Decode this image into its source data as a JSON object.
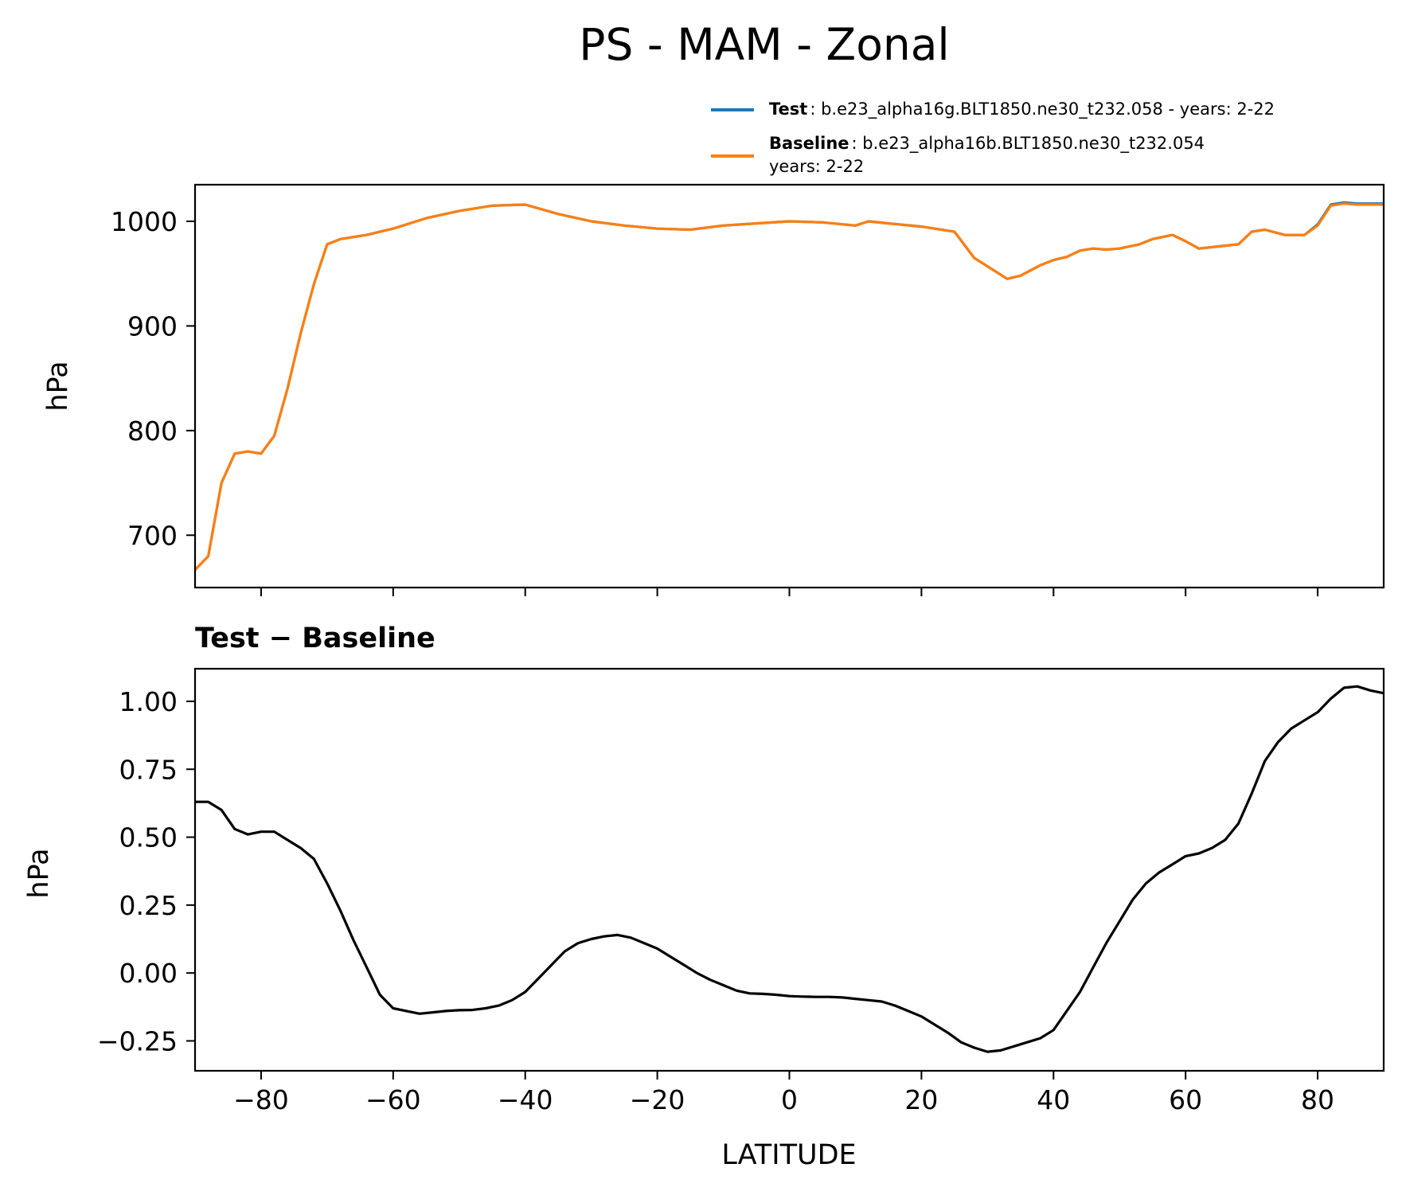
{
  "figure": {
    "title": "PS - MAM - Zonal"
  },
  "chart_data": [
    {
      "type": "line",
      "ylabel": "hPa",
      "xlim": [
        -90,
        90
      ],
      "ylim": [
        650,
        1035
      ],
      "yticks": [
        700,
        800,
        900,
        1000
      ],
      "grid": false,
      "legend": {
        "placement": "above-top-right",
        "entries": [
          {
            "name": "Test",
            "text": ": b.e23_alpha16g.BLT1850.ne30_t232.058 - years: 2-22",
            "color": "#1f77b4"
          },
          {
            "name": "Baseline",
            "text": ": b.e23_alpha16b.BLT1850.ne30_t232.054",
            "text2": "years: 2-22",
            "color": "#ff7f0e"
          }
        ]
      },
      "x": [
        -90,
        -88,
        -86,
        -84,
        -82,
        -80,
        -78,
        -76,
        -74,
        -72,
        -70,
        -68,
        -66,
        -64,
        -62,
        -60,
        -55,
        -50,
        -45,
        -40,
        -35,
        -30,
        -25,
        -20,
        -15,
        -10,
        -5,
        0,
        5,
        10,
        12,
        15,
        20,
        25,
        28,
        30,
        33,
        35,
        38,
        40,
        42,
        44,
        46,
        48,
        50,
        53,
        55,
        58,
        60,
        62,
        65,
        68,
        70,
        72,
        75,
        78,
        80,
        82,
        84,
        86,
        88,
        90
      ],
      "series": [
        {
          "name": "Test",
          "color": "#1f77b4",
          "values": [
            667,
            680,
            750,
            778,
            780,
            778,
            795,
            840,
            893,
            940,
            978,
            983,
            985,
            987,
            990,
            993,
            1003,
            1010,
            1015,
            1016,
            1007,
            1000,
            996,
            993,
            992,
            996,
            998,
            1000,
            999,
            996,
            1000,
            998,
            995,
            990,
            965,
            957,
            945,
            948,
            958,
            963,
            966,
            972,
            974,
            973,
            974,
            978,
            983,
            987,
            981,
            974,
            976,
            978,
            990,
            992,
            987,
            987,
            997,
            1016,
            1018,
            1017,
            1017,
            1017
          ]
        },
        {
          "name": "Baseline",
          "color": "#ff7f0e",
          "values": [
            667,
            680,
            750,
            778,
            780,
            778,
            795,
            840,
            893,
            940,
            978,
            983,
            985,
            987,
            990,
            993,
            1003,
            1010,
            1015,
            1016,
            1007,
            1000,
            996,
            993,
            992,
            996,
            998,
            1000,
            999,
            996,
            1000,
            998,
            995,
            990,
            965,
            957,
            945,
            948,
            958,
            963,
            966,
            972,
            974,
            973,
            974,
            978,
            983,
            987,
            981,
            974,
            976,
            978,
            990,
            992,
            987,
            987,
            996,
            1015,
            1017,
            1016,
            1016,
            1016
          ]
        }
      ]
    },
    {
      "type": "line",
      "title": "Test − Baseline",
      "xlabel": "LATITUDE",
      "ylabel": "hPa",
      "xlim": [
        -90,
        90
      ],
      "ylim": [
        -0.36,
        1.12
      ],
      "xticks": [
        -80,
        -60,
        -40,
        -20,
        0,
        20,
        40,
        60,
        80
      ],
      "yticks": [
        -0.25,
        0.0,
        0.25,
        0.5,
        0.75,
        1.0
      ],
      "grid": false,
      "series": [
        {
          "name": "Test − Baseline",
          "color": "#000000",
          "x": [
            -90,
            -88,
            -86,
            -84,
            -82,
            -80,
            -78,
            -76,
            -74,
            -72,
            -70,
            -68,
            -66,
            -64,
            -62,
            -60,
            -58,
            -56,
            -54,
            -52,
            -50,
            -48,
            -46,
            -44,
            -42,
            -40,
            -38,
            -36,
            -34,
            -32,
            -30,
            -28,
            -26,
            -24,
            -22,
            -20,
            -18,
            -16,
            -14,
            -12,
            -10,
            -8,
            -6,
            -4,
            -2,
            0,
            2,
            4,
            6,
            8,
            10,
            12,
            14,
            16,
            18,
            20,
            22,
            24,
            26,
            28,
            30,
            32,
            34,
            36,
            38,
            40,
            42,
            44,
            46,
            48,
            50,
            52,
            54,
            56,
            58,
            60,
            62,
            64,
            66,
            68,
            70,
            72,
            74,
            76,
            78,
            80,
            82,
            84,
            86,
            88,
            90
          ],
          "values": [
            0.63,
            0.63,
            0.6,
            0.53,
            0.51,
            0.52,
            0.52,
            0.49,
            0.46,
            0.42,
            0.33,
            0.23,
            0.12,
            0.02,
            -0.08,
            -0.13,
            -0.14,
            -0.15,
            -0.145,
            -0.14,
            -0.137,
            -0.136,
            -0.13,
            -0.12,
            -0.1,
            -0.07,
            -0.02,
            0.03,
            0.08,
            0.11,
            0.125,
            0.135,
            0.14,
            0.13,
            0.11,
            0.09,
            0.06,
            0.03,
            0.0,
            -0.025,
            -0.045,
            -0.065,
            -0.075,
            -0.077,
            -0.08,
            -0.085,
            -0.087,
            -0.088,
            -0.088,
            -0.09,
            -0.095,
            -0.1,
            -0.105,
            -0.12,
            -0.14,
            -0.16,
            -0.19,
            -0.22,
            -0.255,
            -0.275,
            -0.29,
            -0.285,
            -0.27,
            -0.255,
            -0.24,
            -0.21,
            -0.14,
            -0.07,
            0.02,
            0.11,
            0.19,
            0.27,
            0.33,
            0.37,
            0.4,
            0.43,
            0.44,
            0.46,
            0.49,
            0.55,
            0.66,
            0.78,
            0.85,
            0.9,
            0.93,
            0.96,
            1.01,
            1.05,
            1.055,
            1.04,
            1.03
          ]
        }
      ]
    }
  ]
}
